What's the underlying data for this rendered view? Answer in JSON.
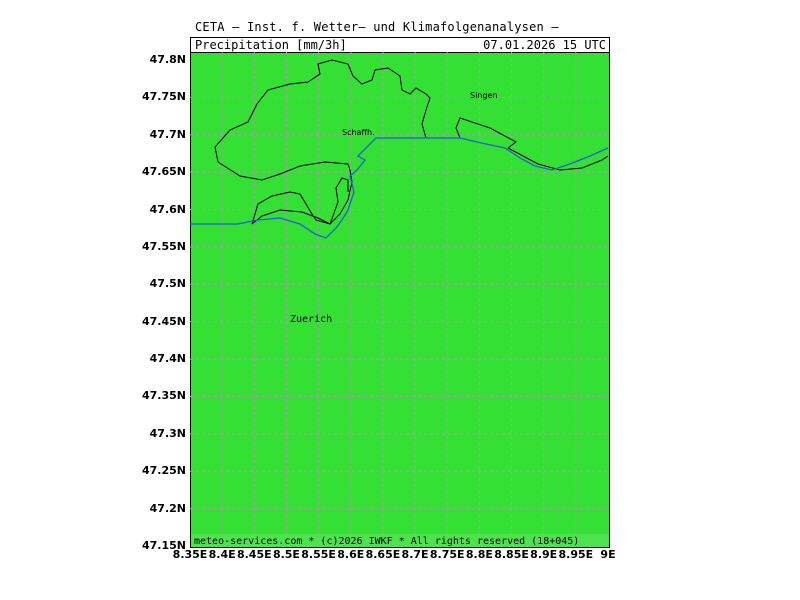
{
  "header": {
    "title": "CETA — Inst. f. Wetter— und Klimafolgenanalysen —",
    "parameter": "Precipitation [mm/3h]",
    "datetime": "07.01.2026  15 UTC"
  },
  "footer": {
    "credit": "meteo-services.com * (c)2026 IWKF * All rights reserved (18+045)"
  },
  "map": {
    "field_color": "#33e033",
    "border_color": "#000000",
    "river_color": "#1f5fd8",
    "grid_color": "#9aa59a",
    "lat_labels": [
      "47.8N",
      "47.75N",
      "47.7N",
      "47.65N",
      "47.6N",
      "47.55N",
      "47.5N",
      "47.45N",
      "47.4N",
      "47.35N",
      "47.3N",
      "47.25N",
      "47.2N",
      "47.15N"
    ],
    "lon_labels": [
      "8.35E",
      "8.4E",
      "8.45E",
      "8.5E",
      "8.55E",
      "8.6E",
      "8.65E",
      "8.7E",
      "8.75E",
      "8.8E",
      "8.85E",
      "8.9E",
      "8.95E",
      "9E"
    ],
    "places": [
      {
        "name": "Singen"
      },
      {
        "name": "Schaffh."
      },
      {
        "name": "Zuerich"
      }
    ]
  }
}
